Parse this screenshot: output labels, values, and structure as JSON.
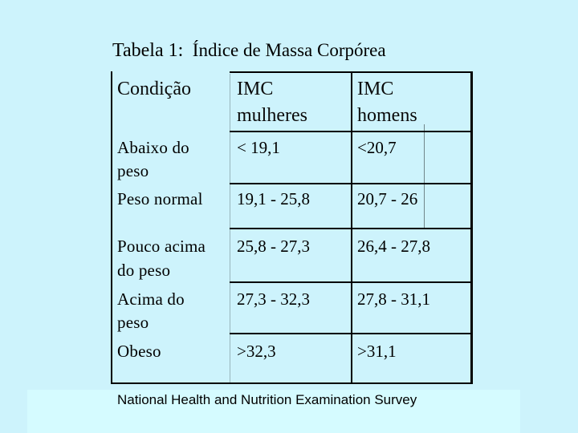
{
  "title": {
    "lead": "Tabela 1:",
    "text": "Índice de Massa Corpórea"
  },
  "table": {
    "headers": [
      "Condição",
      "IMC",
      "mulheres",
      "IMC",
      "homens"
    ],
    "rows": [
      {
        "condicao": [
          "Abaixo do",
          "peso"
        ],
        "mulheres": "< 19,1",
        "homens": "<20,7"
      },
      {
        "condicao": [
          "Peso normal"
        ],
        "mulheres": "19,1 - 25,8",
        "homens": "20,7 - 26"
      },
      {
        "condicao": [
          "Pouco acima",
          "do peso"
        ],
        "mulheres": "25,8 - 27,3",
        "homens": "26,4 - 27,8"
      },
      {
        "condicao": [
          "Acima do",
          "peso"
        ],
        "mulheres": "27,3 - 32,3",
        "homens": "27,8 - 31,1"
      },
      {
        "condicao": [
          "Obeso"
        ],
        "mulheres": ">32,3",
        "homens": ">31,1"
      }
    ]
  },
  "footer": {
    "source": "National Health and Nutrition Examination Survey"
  }
}
